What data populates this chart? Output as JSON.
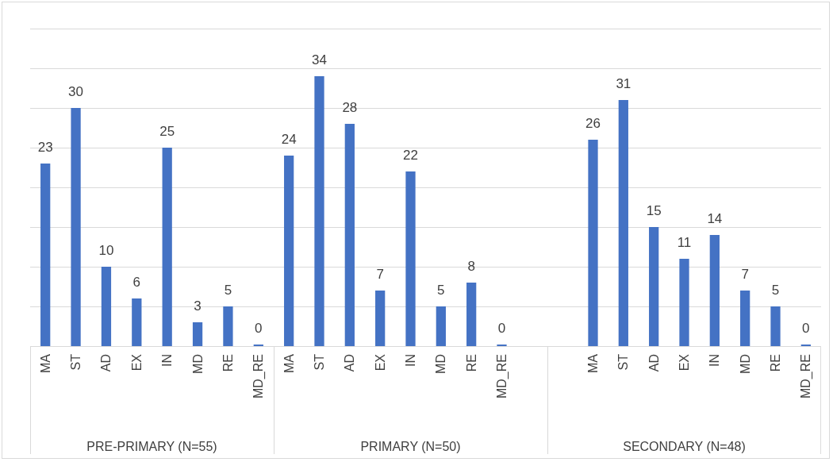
{
  "chart_data": [
    {
      "type": "bar",
      "xlabel": "PRE-PRIMARY (N=55)",
      "categories": [
        "MA",
        "ST",
        "AD",
        "EX",
        "IN",
        "MD",
        "RE",
        "MD_RE"
      ],
      "values": [
        23,
        30,
        10,
        6,
        25,
        3,
        5,
        0
      ],
      "color": "#4472c4",
      "data_labels": true,
      "ylim": [
        0,
        40
      ],
      "yticks": [
        {
          "value": 0,
          "label": null
        },
        {
          "value": 5,
          "label": null
        },
        {
          "value": 10,
          "label": null
        },
        {
          "value": 15,
          "label": null
        },
        {
          "value": 20,
          "label": null
        },
        {
          "value": 25,
          "label": null
        },
        {
          "value": 30,
          "label": null
        },
        {
          "value": 35,
          "label": null
        },
        {
          "value": 40,
          "label": null
        }
      ],
      "grid": "y",
      "tick_labels": "x"
    },
    {
      "type": "bar",
      "xlabel": "PRIMARY (N=50)",
      "categories": [
        "MA",
        "ST",
        "AD",
        "EX",
        "IN",
        "MD",
        "RE",
        "MD_RE",
        null
      ],
      "values": [
        24,
        34,
        28,
        7,
        22,
        5,
        8,
        0,
        null
      ],
      "color": "#4472c4",
      "data_labels": true,
      "ylim": [
        0,
        40
      ],
      "yticks": [
        {
          "value": 0,
          "label": null
        },
        {
          "value": 5,
          "label": null
        },
        {
          "value": 10,
          "label": null
        },
        {
          "value": 15,
          "label": null
        },
        {
          "value": 20,
          "label": null
        },
        {
          "value": 25,
          "label": null
        },
        {
          "value": 30,
          "label": null
        },
        {
          "value": 35,
          "label": null
        },
        {
          "value": 40,
          "label": null
        }
      ],
      "grid": "y",
      "tick_labels": "x"
    },
    {
      "type": "bar",
      "xlabel": "SECONDARY (N=48)",
      "categories": [
        null,
        "MA",
        "ST",
        "AD",
        "EX",
        "IN",
        "MD",
        "RE",
        "MD_RE"
      ],
      "values": [
        null,
        26,
        31,
        15,
        11,
        14,
        7,
        5,
        0
      ],
      "color": "#4472c4",
      "data_labels": true,
      "ylim": [
        0,
        40
      ],
      "yticks": [
        {
          "value": 0,
          "label": null
        },
        {
          "value": 5,
          "label": null
        },
        {
          "value": 10,
          "label": null
        },
        {
          "value": 15,
          "label": null
        },
        {
          "value": 20,
          "label": null
        },
        {
          "value": 25,
          "label": null
        },
        {
          "value": 30,
          "label": null
        },
        {
          "value": 35,
          "label": null
        },
        {
          "value": 40,
          "label": null
        }
      ],
      "grid": "y",
      "tick_labels": "x"
    }
  ]
}
